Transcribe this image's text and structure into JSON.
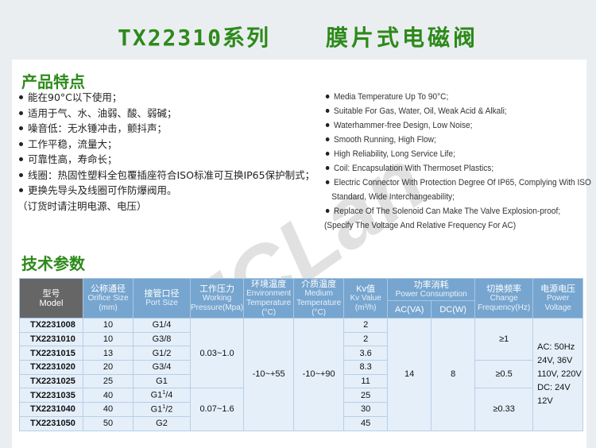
{
  "title": {
    "series": "TX22310系列",
    "name": "膜片式电磁阀"
  },
  "features": {
    "heading": "产品特点",
    "zh": [
      "能在90°C以下使用；",
      "适用于气、水、油弱、酸、弱碱；",
      "噪音低：无水锤冲击，颤抖声；",
      "工作平稳，流量大；",
      "可靠性高，寿命长；",
      "线圈：热固性塑料全包覆插座符合ISO标准可互换IP65保护制式；",
      "更换先导头及线圈可作防爆阀用。"
    ],
    "zh_note": "（订货时请注明电源、电压）",
    "en": [
      "Media Temperature Up To 90°C;",
      "Suitable For Gas, Water, Oil, Weak Acid & Alkali;",
      "Waterhammer-free Design, Low Noise;",
      "Smooth Running, High Flow;",
      "High Reliability, Long Service Life;",
      "Coil: Encapsulation With Thermoset Plastics;",
      "Electric Connector With Protection Degree Of IP65, Complying With ISO",
      "Replace Of The Solenoid Can Make The Valve Explosion-proof;"
    ],
    "en_cont": "Standard, Wide Interchangeability;",
    "en_note": "(Specify The Voltage And Relative Frequency For AC)"
  },
  "watermark": "ZCLan",
  "specs": {
    "heading": "技术参数",
    "headers": {
      "model": [
        "型号",
        "Model"
      ],
      "orifice": [
        "公称通径",
        "Orifice Size",
        "(mm)"
      ],
      "port": [
        "接管口径",
        "Port Size"
      ],
      "pressure": [
        "工作压力",
        "Working",
        "Pressure(Mpa)"
      ],
      "env": [
        "环境温度",
        "Environment",
        "Temperature",
        "(°C)"
      ],
      "medium": [
        "介质温度",
        "Medium",
        "Temperature",
        "(°C)"
      ],
      "kv": [
        "Kv值",
        "Kv Value",
        "(m³/h)"
      ],
      "power": [
        "功率消耗",
        "Power Consumption"
      ],
      "ac": "AC(VA)",
      "dc": "DC(W)",
      "freq": [
        "切换频率",
        "Change",
        "Frequency(Hz)"
      ],
      "voltage": [
        "电源电压",
        "Power Voltage"
      ]
    },
    "rows": [
      {
        "model": "TX2231008",
        "orifice": "10",
        "port": "G1/4",
        "kv": "2"
      },
      {
        "model": "TX2231010",
        "orifice": "10",
        "port": "G3/8",
        "kv": "2"
      },
      {
        "model": "TX2231015",
        "orifice": "13",
        "port": "G1/2",
        "kv": "3.6"
      },
      {
        "model": "TX2231020",
        "orifice": "20",
        "port": "G3/4",
        "kv": "8.3"
      },
      {
        "model": "TX2231025",
        "orifice": "25",
        "port": "G1",
        "kv": "11"
      },
      {
        "model": "TX2231035",
        "orifice": "40",
        "port_main": "G1",
        "port_sup": "1",
        "port_rest": "/4",
        "kv": "25"
      },
      {
        "model": "TX2231040",
        "orifice": "40",
        "port_main": "G1",
        "port_sup": "1",
        "port_rest": "/2",
        "kv": "30"
      },
      {
        "model": "TX2231050",
        "orifice": "50",
        "port": "G2",
        "kv": "45"
      }
    ],
    "pressure": [
      "0.03~1.0",
      "0.07~1.6"
    ],
    "env_temp": "-10~+55",
    "medium_temp": "-10~+90",
    "ac": "14",
    "dc": "8",
    "freq": [
      "≥1",
      "≥0.5",
      "≥0.33"
    ],
    "voltage": [
      "AC: 50Hz",
      "24V, 36V",
      "110V, 220V",
      "DC: 24V",
      "12V"
    ]
  }
}
